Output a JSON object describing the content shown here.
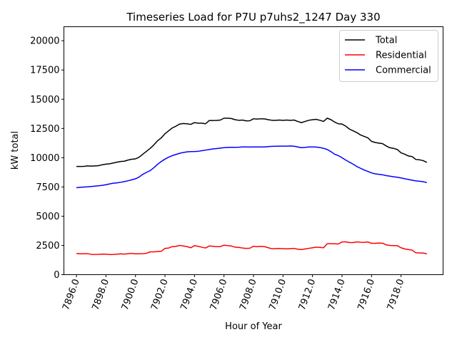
{
  "chart_data": {
    "type": "line",
    "title": "Timeseries Load for P7U p7uhs2_1247  Day 330",
    "xlabel": "Hour of Year",
    "ylabel": "kW total",
    "xlim": [
      7895.15,
      7920.85
    ],
    "ylim": [
      0,
      21200
    ],
    "xticks": [
      7896,
      7898,
      7900,
      7902,
      7904,
      7906,
      7908,
      7910,
      7912,
      7914,
      7916,
      7918
    ],
    "xtick_labels": [
      "7896.0",
      "7898.0",
      "7900.0",
      "7902.0",
      "7904.0",
      "7906.0",
      "7908.0",
      "7910.0",
      "7912.0",
      "7914.0",
      "7916.0",
      "7918.0"
    ],
    "yticks": [
      0,
      2500,
      5000,
      7500,
      10000,
      12500,
      15000,
      17500,
      20000
    ],
    "ytick_labels": [
      "0",
      "2500",
      "5000",
      "7500",
      "10000",
      "12500",
      "15000",
      "17500",
      "20000"
    ],
    "legend_position": "top-right",
    "grid": false,
    "x": [
      7896.0,
      7896.25,
      7896.5,
      7896.75,
      7897.0,
      7897.25,
      7897.5,
      7897.75,
      7898.0,
      7898.25,
      7898.5,
      7898.75,
      7899.0,
      7899.25,
      7899.5,
      7899.75,
      7900.0,
      7900.25,
      7900.5,
      7900.75,
      7901.0,
      7901.25,
      7901.5,
      7901.75,
      7902.0,
      7902.25,
      7902.5,
      7902.75,
      7903.0,
      7903.25,
      7903.5,
      7903.75,
      7904.0,
      7904.25,
      7904.5,
      7904.75,
      7905.0,
      7905.25,
      7905.5,
      7905.75,
      7906.0,
      7906.25,
      7906.5,
      7906.75,
      7907.0,
      7907.25,
      7907.5,
      7907.75,
      7908.0,
      7908.25,
      7908.5,
      7908.75,
      7909.0,
      7909.25,
      7909.5,
      7909.75,
      7910.0,
      7910.25,
      7910.5,
      7910.75,
      7911.0,
      7911.25,
      7911.5,
      7911.75,
      7912.0,
      7912.25,
      7912.5,
      7912.75,
      7913.0,
      7913.25,
      7913.5,
      7913.75,
      7914.0,
      7914.25,
      7914.5,
      7914.75,
      7915.0,
      7915.25,
      7915.5,
      7915.75,
      7916.0,
      7916.25,
      7916.5,
      7916.75,
      7917.0,
      7917.25,
      7917.5,
      7917.75,
      7918.0,
      7918.25,
      7918.5,
      7918.75,
      7919.0,
      7919.25,
      7919.5,
      7919.75
    ],
    "series": [
      {
        "name": "Total",
        "color": "#000000",
        "values": [
          9250,
          9250,
          9260,
          9300,
          9280,
          9300,
          9320,
          9400,
          9450,
          9480,
          9550,
          9620,
          9680,
          9700,
          9800,
          9870,
          9900,
          10050,
          10300,
          10550,
          10800,
          11100,
          11450,
          11700,
          12050,
          12300,
          12550,
          12700,
          12880,
          12920,
          12900,
          12850,
          13000,
          12950,
          12950,
          12900,
          13180,
          13180,
          13190,
          13220,
          13380,
          13380,
          13350,
          13250,
          13200,
          13220,
          13150,
          13160,
          13330,
          13300,
          13330,
          13320,
          13250,
          13200,
          13200,
          13220,
          13200,
          13220,
          13200,
          13220,
          13100,
          13000,
          13100,
          13200,
          13250,
          13280,
          13200,
          13100,
          13380,
          13250,
          13050,
          12900,
          12880,
          12700,
          12450,
          12300,
          12150,
          11950,
          11820,
          11700,
          11400,
          11300,
          11250,
          11200,
          11000,
          10850,
          10800,
          10700,
          10420,
          10300,
          10150,
          10100,
          9850,
          9820,
          9750,
          9600
        ]
      },
      {
        "name": "Residential",
        "color": "#ff0000",
        "values": [
          1820,
          1780,
          1790,
          1800,
          1740,
          1730,
          1740,
          1760,
          1750,
          1720,
          1730,
          1750,
          1780,
          1760,
          1800,
          1820,
          1780,
          1790,
          1800,
          1830,
          1950,
          1950,
          1980,
          2000,
          2250,
          2280,
          2400,
          2420,
          2500,
          2450,
          2400,
          2300,
          2480,
          2420,
          2350,
          2280,
          2450,
          2430,
          2400,
          2400,
          2520,
          2480,
          2450,
          2350,
          2330,
          2280,
          2250,
          2260,
          2430,
          2400,
          2420,
          2400,
          2300,
          2220,
          2230,
          2250,
          2220,
          2210,
          2230,
          2250,
          2180,
          2150,
          2200,
          2250,
          2300,
          2350,
          2330,
          2300,
          2650,
          2650,
          2640,
          2620,
          2800,
          2800,
          2750,
          2740,
          2800,
          2770,
          2760,
          2800,
          2680,
          2680,
          2700,
          2690,
          2550,
          2500,
          2480,
          2480,
          2300,
          2200,
          2150,
          2100,
          1870,
          1860,
          1850,
          1780
        ]
      },
      {
        "name": "Commercial",
        "color": "#0000ff",
        "values": [
          7430,
          7470,
          7490,
          7510,
          7540,
          7570,
          7600,
          7640,
          7690,
          7760,
          7820,
          7850,
          7900,
          7960,
          8030,
          8110,
          8200,
          8350,
          8580,
          8750,
          8900,
          9150,
          9440,
          9680,
          9880,
          10050,
          10180,
          10280,
          10380,
          10450,
          10500,
          10520,
          10530,
          10550,
          10600,
          10650,
          10700,
          10750,
          10780,
          10820,
          10860,
          10880,
          10890,
          10890,
          10900,
          10920,
          10920,
          10910,
          10920,
          10920,
          10920,
          10920,
          10950,
          10970,
          10980,
          10990,
          10990,
          10990,
          11000,
          10980,
          10920,
          10860,
          10880,
          10920,
          10920,
          10910,
          10870,
          10800,
          10700,
          10520,
          10300,
          10180,
          10000,
          9800,
          9620,
          9450,
          9250,
          9100,
          8950,
          8830,
          8700,
          8620,
          8580,
          8540,
          8470,
          8420,
          8370,
          8330,
          8270,
          8200,
          8140,
          8080,
          8020,
          7990,
          7950,
          7870
        ]
      }
    ]
  }
}
